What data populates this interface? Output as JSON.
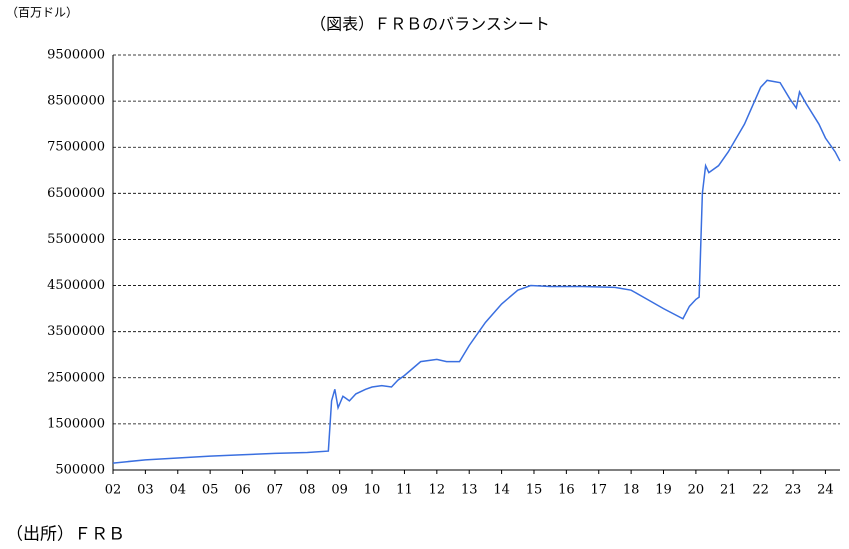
{
  "chart_data": {
    "type": "line",
    "title": "（図表）ＦＲＢのバランスシート",
    "y_label": "（百万ドル）",
    "source": "（出所）ＦＲＢ",
    "x": [
      2.0,
      3.0,
      4.0,
      5.0,
      6.0,
      7.0,
      8.0,
      8.65,
      8.75,
      8.85,
      8.95,
      9.1,
      9.2,
      9.3,
      9.5,
      9.8,
      10.0,
      10.3,
      10.6,
      10.8,
      11.0,
      11.5,
      12.0,
      12.3,
      12.7,
      13.0,
      13.5,
      14.0,
      14.5,
      14.9,
      15.5,
      16.5,
      17.5,
      18.0,
      18.5,
      19.0,
      19.6,
      19.8,
      20.0,
      20.1,
      20.2,
      20.3,
      20.4,
      20.7,
      21.0,
      21.5,
      22.0,
      22.2,
      22.6,
      22.9,
      23.1,
      23.2,
      23.4,
      23.8,
      24.0,
      24.3,
      24.45
    ],
    "series": [
      {
        "name": "FRB",
        "color": "#3a6fe0",
        "values": [
          650000,
          720000,
          760000,
          800000,
          830000,
          860000,
          880000,
          910000,
          2000000,
          2250000,
          1850000,
          2100000,
          2050000,
          2000000,
          2150000,
          2250000,
          2300000,
          2330000,
          2300000,
          2450000,
          2550000,
          2850000,
          2900000,
          2850000,
          2850000,
          3200000,
          3700000,
          4100000,
          4400000,
          4500000,
          4480000,
          4480000,
          4460000,
          4400000,
          4200000,
          4000000,
          3780000,
          4050000,
          4200000,
          4250000,
          6500000,
          7100000,
          6950000,
          7100000,
          7400000,
          8000000,
          8800000,
          8950000,
          8900000,
          8550000,
          8350000,
          8700000,
          8450000,
          8000000,
          7700000,
          7400000,
          7200000
        ]
      }
    ],
    "xlim": [
      2.0,
      24.45
    ],
    "xticks": [
      {
        "value": 2,
        "label": "02"
      },
      {
        "value": 3,
        "label": "03"
      },
      {
        "value": 4,
        "label": "04"
      },
      {
        "value": 5,
        "label": "05"
      },
      {
        "value": 6,
        "label": "06"
      },
      {
        "value": 7,
        "label": "07"
      },
      {
        "value": 8,
        "label": "08"
      },
      {
        "value": 9,
        "label": "09"
      },
      {
        "value": 10,
        "label": "10"
      },
      {
        "value": 11,
        "label": "11"
      },
      {
        "value": 12,
        "label": "12"
      },
      {
        "value": 13,
        "label": "13"
      },
      {
        "value": 14,
        "label": "14"
      },
      {
        "value": 15,
        "label": "15"
      },
      {
        "value": 16,
        "label": "16"
      },
      {
        "value": 17,
        "label": "17"
      },
      {
        "value": 18,
        "label": "18"
      },
      {
        "value": 19,
        "label": "19"
      },
      {
        "value": 20,
        "label": "20"
      },
      {
        "value": 21,
        "label": "21"
      },
      {
        "value": 22,
        "label": "22"
      },
      {
        "value": 23,
        "label": "23"
      },
      {
        "value": 24,
        "label": "24"
      }
    ],
    "ylim": [
      500000,
      9500000
    ],
    "yticks": [
      500000,
      1500000,
      2500000,
      3500000,
      4500000,
      5500000,
      6500000,
      7500000,
      8500000,
      9500000
    ],
    "grid": true
  }
}
